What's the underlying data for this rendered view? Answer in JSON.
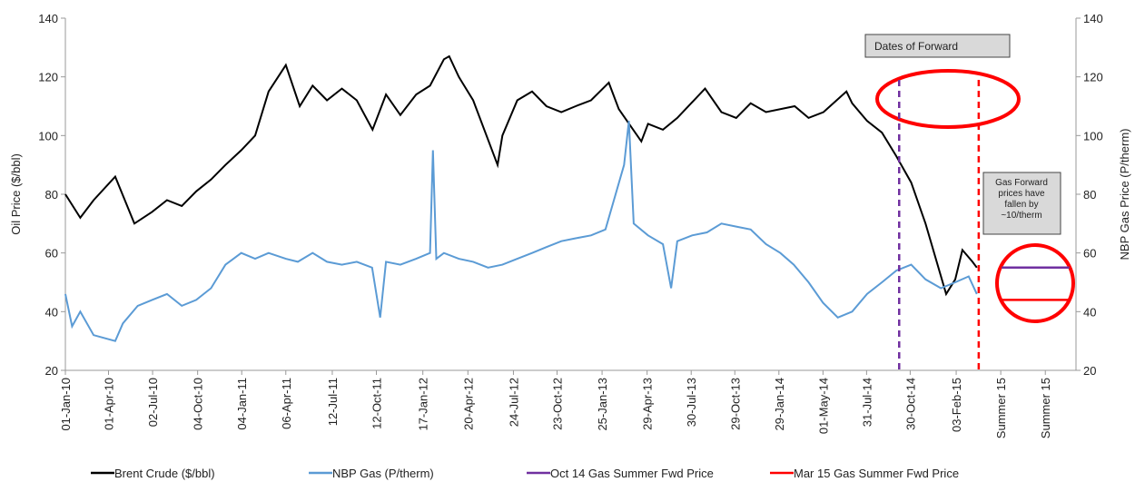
{
  "chart_data": {
    "type": "line",
    "y_title": "Oil Price ($/bbl)",
    "y2_title": "NBP Gas Price (P/therm)",
    "ylim": [
      20,
      140
    ],
    "yticks": [
      20,
      40,
      60,
      80,
      100,
      120,
      140
    ],
    "y2lim": [
      20,
      140
    ],
    "y2ticks": [
      20,
      40,
      60,
      80,
      100,
      120,
      140
    ],
    "xlim": [
      "01-Jan-10",
      "11-Oct-15"
    ],
    "xticks": [
      "01-Jan-10",
      "01-Apr-10",
      "02-Jul-10",
      "04-Oct-10",
      "04-Jan-11",
      "06-Apr-11",
      "12-Jul-11",
      "12-Oct-11",
      "17-Jan-12",
      "20-Apr-12",
      "24-Jul-12",
      "23-Oct-12",
      "25-Jan-13",
      "29-Apr-13",
      "30-Jul-13",
      "29-Oct-13",
      "29-Jan-14",
      "01-May-14",
      "31-Jul-14",
      "30-Oct-14",
      "03-Feb-15",
      {
        "value": "07-May-15",
        "label": "Summer 15"
      },
      {
        "value": "08-Aug-15",
        "label": "Summer 15"
      }
    ],
    "grid": false,
    "series": [
      {
        "name": "Brent Crude ($/bbl)",
        "color": "#000000",
        "axis": "y",
        "x": [
          "01-Jan-10",
          "01-Feb-10",
          "01-Mar-10",
          "15-Apr-10",
          "25-May-10",
          "01-Jul-10",
          "01-Aug-10",
          "01-Sep-10",
          "01-Oct-10",
          "01-Nov-10",
          "01-Dec-10",
          "03-Jan-11",
          "01-Feb-11",
          "01-Mar-11",
          "06-Apr-11",
          "05-May-11",
          "01-Jun-11",
          "01-Jul-11",
          "01-Aug-11",
          "01-Sep-11",
          "04-Oct-11",
          "01-Nov-11",
          "01-Dec-11",
          "03-Jan-12",
          "01-Feb-12",
          "01-Mar-12",
          "12-Mar-12",
          "01-Apr-12",
          "01-May-12",
          "21-Jun-12",
          "01-Jul-12",
          "01-Aug-12",
          "01-Sep-12",
          "01-Oct-12",
          "01-Nov-12",
          "01-Dec-12",
          "02-Jan-13",
          "08-Feb-13",
          "01-Mar-13",
          "17-Apr-13",
          "01-May-13",
          "01-Jun-13",
          "01-Jul-13",
          "28-Aug-13",
          "01-Oct-13",
          "01-Nov-13",
          "01-Dec-13",
          "02-Jan-14",
          "03-Mar-14",
          "01-Apr-14",
          "02-May-14",
          "19-Jun-14",
          "01-Jul-14",
          "01-Aug-14",
          "01-Sep-14",
          "01-Oct-14",
          "01-Nov-14",
          "01-Dec-14",
          "13-Jan-15",
          "01-Feb-15",
          "16-Feb-15",
          "09-Mar-15",
          "18-Mar-15"
        ],
        "values": [
          80,
          72,
          78,
          86,
          70,
          74,
          78,
          76,
          81,
          85,
          90,
          95,
          100,
          115,
          124,
          110,
          117,
          112,
          116,
          112,
          102,
          114,
          107,
          114,
          117,
          126,
          127,
          120,
          112,
          90,
          100,
          112,
          115,
          110,
          108,
          110,
          112,
          118,
          109,
          98,
          104,
          102,
          106,
          116,
          108,
          106,
          111,
          108,
          110,
          106,
          108,
          115,
          111,
          105,
          101,
          93,
          84,
          70,
          46,
          51,
          61,
          57,
          55
        ]
      },
      {
        "name": "NBP Gas (P/therm)",
        "color": "#5b9bd5",
        "axis": "y2",
        "x": [
          "01-Jan-10",
          "15-Jan-10",
          "01-Feb-10",
          "01-Mar-10",
          "15-Apr-10",
          "01-May-10",
          "01-Jun-10",
          "01-Jul-10",
          "01-Aug-10",
          "01-Sep-10",
          "01-Oct-10",
          "01-Nov-10",
          "01-Dec-10",
          "03-Jan-11",
          "01-Feb-11",
          "01-Mar-11",
          "06-Apr-11",
          "01-May-11",
          "01-Jun-11",
          "01-Jul-11",
          "01-Aug-11",
          "01-Sep-11",
          "03-Oct-11",
          "20-Oct-11",
          "01-Nov-11",
          "01-Dec-11",
          "03-Jan-12",
          "01-Feb-12",
          "07-Feb-12",
          "14-Feb-12",
          "01-Mar-12",
          "01-Apr-12",
          "01-May-12",
          "01-Jun-12",
          "01-Jul-12",
          "01-Aug-12",
          "01-Sep-12",
          "01-Oct-12",
          "01-Nov-12",
          "01-Dec-12",
          "02-Jan-13",
          "01-Feb-13",
          "12-Mar-13",
          "22-Mar-13",
          "01-Apr-13",
          "01-May-13",
          "01-Jun-13",
          "18-Jun-13",
          "01-Jul-13",
          "01-Aug-13",
          "01-Sep-13",
          "01-Oct-13",
          "01-Nov-13",
          "01-Dec-13",
          "02-Jan-14",
          "01-Feb-14",
          "01-Mar-14",
          "01-Apr-14",
          "01-May-14",
          "01-Jun-14",
          "01-Jul-14",
          "01-Aug-14",
          "01-Sep-14",
          "01-Oct-14",
          "01-Nov-14",
          "01-Dec-14",
          "02-Jan-15",
          "01-Feb-15",
          "01-Mar-15",
          "18-Mar-15"
        ],
        "values": [
          46,
          35,
          40,
          32,
          30,
          36,
          42,
          44,
          46,
          42,
          44,
          48,
          56,
          60,
          58,
          60,
          58,
          57,
          60,
          57,
          56,
          57,
          55,
          38,
          57,
          56,
          58,
          60,
          95,
          58,
          60,
          58,
          57,
          55,
          56,
          58,
          60,
          62,
          64,
          65,
          66,
          68,
          90,
          105,
          70,
          66,
          63,
          48,
          64,
          66,
          67,
          70,
          69,
          68,
          63,
          60,
          56,
          50,
          43,
          38,
          40,
          46,
          50,
          54,
          56,
          51,
          48,
          50,
          52,
          46
        ]
      },
      {
        "name": "Oct 14 Gas Summer Fwd Price",
        "color": "#7030a0",
        "axis": "y2",
        "marker_date": "07-Oct-14",
        "x": [
          "09-May-15",
          "27-Sep-15"
        ],
        "values": [
          55,
          55
        ]
      },
      {
        "name": "Mar 15 Gas Summer Fwd Price",
        "color": "#ff0000",
        "axis": "y2",
        "marker_date": "22-Mar-15",
        "x": [
          "09-May-15",
          "27-Sep-15"
        ],
        "values": [
          44,
          44
        ]
      }
    ],
    "annotations": [
      "Dates of Forward",
      [
        "Gas Forward",
        "prices have",
        "fallen by",
        "~10/therm"
      ]
    ]
  }
}
